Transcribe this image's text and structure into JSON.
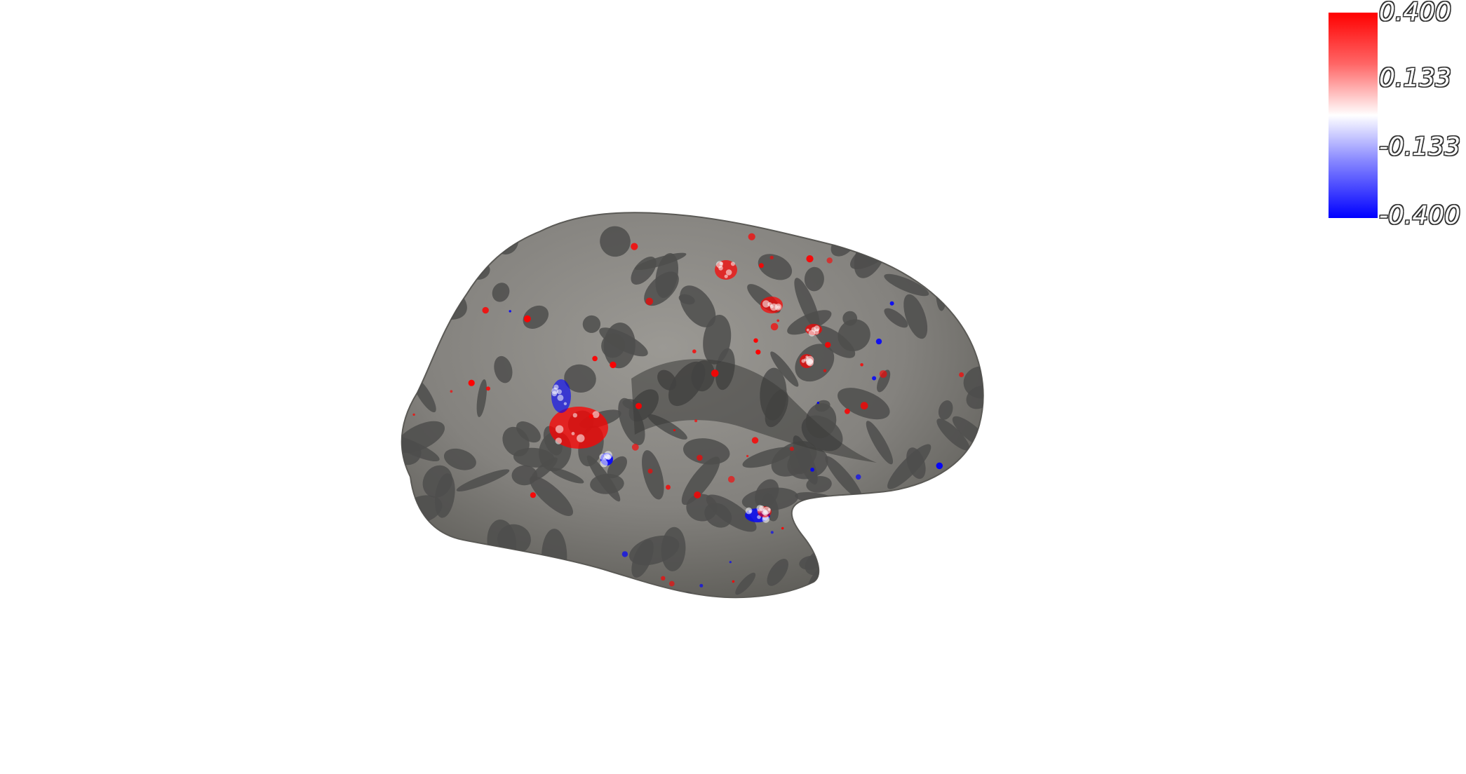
{
  "colorbar": {
    "labels": [
      "0.400",
      "0.133",
      "-0.133",
      "-0.400"
    ],
    "max": 0.4,
    "min": -0.4,
    "colors": {
      "positive": "#ff0000",
      "mid": "#ffffff",
      "negative": "#0000ff"
    }
  },
  "surface": {
    "base_light": "#8c8a86",
    "base_dark": "#4e4e4c"
  }
}
